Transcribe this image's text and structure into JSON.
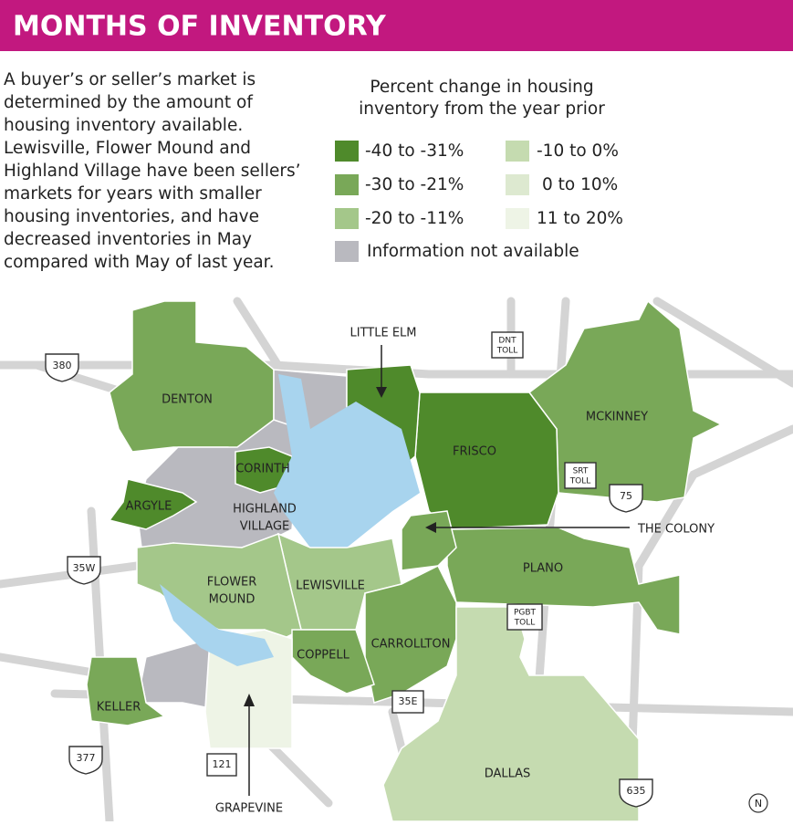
{
  "header": {
    "title": "MONTHS OF INVENTORY"
  },
  "intro": {
    "lines": [
      "A buyer’s or seller’s market is",
      "determined by the amount of",
      "housing inventory available.",
      "Lewisville, Flower Mound and",
      "Highland Village have been sellers’",
      "markets for years with smaller",
      "housing inventories, and have",
      "decreased inventories in May",
      "compared with May of last year."
    ]
  },
  "legend": {
    "title_lines": [
      "Percent change in housing",
      "inventory from the year prior"
    ],
    "items": [
      {
        "label": "-40 to -31%",
        "color": "#4f8a2b"
      },
      {
        "label": "-30 to -21%",
        "color": "#79a858"
      },
      {
        "label": "-20 to -11%",
        "color": "#a4c78a"
      },
      {
        "label": "-10 to 0%",
        "color": "#c5dbb0"
      },
      {
        "label": "0 to 10%",
        "color": "#dde9d0"
      },
      {
        "label": "11 to 20%",
        "color": "#eef4e6"
      },
      {
        "label": "Information not available",
        "color": "#b9b9bf"
      }
    ]
  },
  "regions": [
    {
      "lines": [
        "DENTON"
      ]
    },
    {
      "lines": [
        "CORINTH"
      ]
    },
    {
      "lines": [
        "ARGYLE"
      ]
    },
    {
      "lines": [
        "HIGHLAND",
        "VILLAGE"
      ]
    },
    {
      "lines": [
        "FRISCO"
      ]
    },
    {
      "lines": [
        "MCKINNEY"
      ]
    },
    {
      "lines": [
        "PLANO"
      ]
    },
    {
      "lines": [
        "FLOWER",
        "MOUND"
      ]
    },
    {
      "lines": [
        "LEWISVILLE"
      ]
    },
    {
      "lines": [
        "COPPELL"
      ]
    },
    {
      "lines": [
        "CARROLLTON"
      ]
    },
    {
      "lines": [
        "KELLER"
      ]
    },
    {
      "lines": [
        "DALLAS"
      ]
    }
  ],
  "callouts": [
    "LITTLE ELM",
    "THE COLONY",
    "GRAPEVINE"
  ],
  "highways": [
    {
      "lines": [
        "380"
      ]
    },
    {
      "lines": [
        "35W"
      ]
    },
    {
      "lines": [
        "377"
      ]
    },
    {
      "lines": [
        "121"
      ]
    },
    {
      "lines": [
        "35E"
      ]
    },
    {
      "lines": [
        "635"
      ]
    },
    {
      "lines": [
        "75"
      ]
    },
    {
      "lines": [
        "DNT",
        "TOLL"
      ]
    },
    {
      "lines": [
        "SRT",
        "TOLL"
      ]
    },
    {
      "lines": [
        "PGBT",
        "TOLL"
      ]
    }
  ],
  "north": "N"
}
